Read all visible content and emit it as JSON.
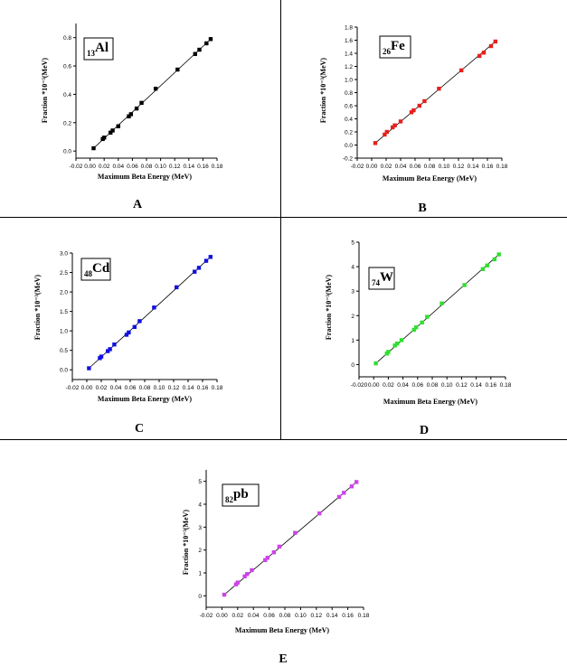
{
  "panels": [
    {
      "letter": "A",
      "element_sub": "13",
      "element_sym": "Al"
    },
    {
      "letter": "B",
      "element_sub": "26",
      "element_sym": "Fe"
    },
    {
      "letter": "C",
      "element_sub": "48",
      "element_sym": "Cd"
    },
    {
      "letter": "D",
      "element_sub": "74",
      "element_sym": "W"
    },
    {
      "letter": "E",
      "element_sub": "82",
      "element_sym": "pb"
    }
  ],
  "chart_data": [
    {
      "type": "scatter",
      "xlabel": "Maximum Beta Energy (MeV)",
      "ylabel": "Fraction *10⁻³(MeV)",
      "xlim": [
        -0.02,
        0.18
      ],
      "ylim": [
        -0.05,
        0.9
      ],
      "xticks": [
        "-0.02",
        "0.00",
        "0.02",
        "0.04",
        "0.06",
        "0.08",
        "0.10",
        "0.12",
        "0.14",
        "0.16",
        "0.18"
      ],
      "yticks": [
        "0.0",
        "0.2",
        "0.4",
        "0.6",
        "0.8"
      ],
      "color": "#000000",
      "x": [
        0.005,
        0.018,
        0.02,
        0.029,
        0.032,
        0.04,
        0.055,
        0.058,
        0.066,
        0.073,
        0.093,
        0.124,
        0.149,
        0.155,
        0.165,
        0.171
      ],
      "y": [
        0.02,
        0.085,
        0.095,
        0.13,
        0.145,
        0.175,
        0.245,
        0.26,
        0.3,
        0.34,
        0.44,
        0.575,
        0.685,
        0.715,
        0.76,
        0.79
      ],
      "series": [
        {
          "values": [
            0.02,
            0.085,
            0.095,
            0.13,
            0.145,
            0.175,
            0.245,
            0.26,
            0.3,
            0.34,
            0.44,
            0.575,
            0.685,
            0.715,
            0.76,
            0.79
          ]
        }
      ]
    },
    {
      "type": "scatter",
      "xlabel": "Maximum Beta Energy (MeV)",
      "ylabel": "Fraction *10⁻³(MeV)",
      "xlim": [
        -0.02,
        0.18
      ],
      "ylim": [
        -0.2,
        1.8
      ],
      "xticks": [
        "-0.02",
        "0.00",
        "0.02",
        "0.04",
        "0.06",
        "0.08",
        "0.10",
        "0.12",
        "0.14",
        "0.16",
        "0.18"
      ],
      "yticks": [
        "-0.2",
        "0.0",
        "0.2",
        "0.4",
        "0.6",
        "0.8",
        "1.0",
        "1.2",
        "1.4",
        "1.6",
        "1.8"
      ],
      "color": "#e3211c",
      "x": [
        0.005,
        0.018,
        0.021,
        0.029,
        0.032,
        0.04,
        0.055,
        0.058,
        0.066,
        0.073,
        0.093,
        0.124,
        0.149,
        0.155,
        0.165,
        0.171
      ],
      "y": [
        0.03,
        0.16,
        0.2,
        0.27,
        0.3,
        0.36,
        0.5,
        0.53,
        0.6,
        0.67,
        0.86,
        1.14,
        1.36,
        1.41,
        1.51,
        1.58
      ],
      "series": [
        {
          "values": [
            0.03,
            0.16,
            0.2,
            0.27,
            0.3,
            0.36,
            0.5,
            0.53,
            0.6,
            0.67,
            0.86,
            1.14,
            1.36,
            1.41,
            1.51,
            1.58
          ]
        }
      ]
    },
    {
      "type": "scatter",
      "xlabel": "Maximum Beta Energy (MeV)",
      "ylabel": "Fraction *10⁻³(MeV)",
      "xlim": [
        -0.02,
        0.18
      ],
      "ylim": [
        -0.25,
        3.0
      ],
      "xticks": [
        "-0.02",
        "0.00",
        "0.02",
        "0.04",
        "0.06",
        "0.08",
        "0.10",
        "0.12",
        "0.14",
        "0.16",
        "0.18"
      ],
      "yticks": [
        "0.0",
        "0.5",
        "1.0",
        "1.5",
        "2.0",
        "2.5",
        "3.0"
      ],
      "color": "#1010e0",
      "x": [
        0.003,
        0.018,
        0.02,
        0.029,
        0.032,
        0.038,
        0.055,
        0.058,
        0.066,
        0.073,
        0.093,
        0.124,
        0.149,
        0.155,
        0.165,
        0.171
      ],
      "y": [
        0.04,
        0.3,
        0.34,
        0.48,
        0.53,
        0.65,
        0.9,
        0.96,
        1.1,
        1.25,
        1.6,
        2.12,
        2.52,
        2.62,
        2.8,
        2.9
      ],
      "series": [
        {
          "values": [
            0.04,
            0.3,
            0.34,
            0.48,
            0.53,
            0.65,
            0.9,
            0.96,
            1.1,
            1.25,
            1.6,
            2.12,
            2.52,
            2.62,
            2.8,
            2.9
          ]
        }
      ]
    },
    {
      "type": "scatter",
      "xlabel": "Maximum Beta Energy (MeV)",
      "ylabel": "Fraction *10⁻³(MeV)",
      "xlim": [
        -0.02,
        0.18
      ],
      "ylim": [
        -0.5,
        5.0
      ],
      "xticks": [
        "-0.020",
        "0.00",
        "0.02",
        "0.04",
        "0.06",
        "0.08",
        "0.10",
        "0.12",
        "0.14",
        "0.16",
        "0.18"
      ],
      "yticks": [
        "0",
        "1",
        "2",
        "3",
        "4",
        "5"
      ],
      "color": "#2ee02e",
      "x": [
        0.003,
        0.018,
        0.02,
        0.029,
        0.032,
        0.038,
        0.055,
        0.058,
        0.066,
        0.073,
        0.093,
        0.124,
        0.149,
        0.155,
        0.165,
        0.171
      ],
      "y": [
        0.05,
        0.45,
        0.52,
        0.78,
        0.86,
        1.0,
        1.42,
        1.52,
        1.72,
        1.95,
        2.5,
        3.25,
        3.9,
        4.05,
        4.3,
        4.5
      ],
      "series": [
        {
          "values": [
            0.05,
            0.45,
            0.52,
            0.78,
            0.86,
            1.0,
            1.42,
            1.52,
            1.72,
            1.95,
            2.5,
            3.25,
            3.9,
            4.05,
            4.3,
            4.5
          ]
        }
      ]
    },
    {
      "type": "scatter",
      "xlabel": "Maximum Beta Energy (MeV)",
      "ylabel": "Fraction *10⁻³(MeV)",
      "xlim": [
        -0.02,
        0.18
      ],
      "ylim": [
        -0.5,
        5.5
      ],
      "xticks": [
        "-0.02",
        "0.00",
        "0.02",
        "0.04",
        "0.06",
        "0.08",
        "0.10",
        "0.12",
        "0.14",
        "0.16",
        "0.18"
      ],
      "yticks": [
        "0",
        "1",
        "2",
        "3",
        "4",
        "5"
      ],
      "color": "#cc44e8",
      "x": [
        0.003,
        0.018,
        0.02,
        0.029,
        0.032,
        0.038,
        0.055,
        0.058,
        0.066,
        0.073,
        0.093,
        0.124,
        0.149,
        0.155,
        0.165,
        0.171
      ],
      "y": [
        0.05,
        0.5,
        0.58,
        0.85,
        0.95,
        1.12,
        1.56,
        1.66,
        1.9,
        2.15,
        2.75,
        3.6,
        4.32,
        4.5,
        4.78,
        4.97
      ],
      "series": [
        {
          "values": [
            0.05,
            0.5,
            0.58,
            0.85,
            0.95,
            1.12,
            1.56,
            1.66,
            1.9,
            2.15,
            2.75,
            3.6,
            4.32,
            4.5,
            4.78,
            4.97
          ]
        }
      ]
    }
  ]
}
